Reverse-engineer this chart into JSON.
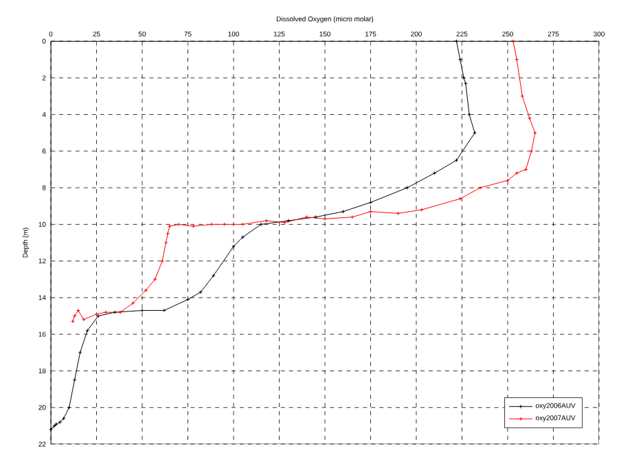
{
  "chart_data": {
    "type": "line",
    "title": "Dissolved Oxygen (micro molar)",
    "ylabel": "Depth (m)",
    "xlim": [
      0,
      300
    ],
    "xticks": [
      0,
      25,
      50,
      75,
      100,
      125,
      150,
      175,
      200,
      225,
      250,
      275,
      300
    ],
    "ylim": [
      22,
      0
    ],
    "yticks": [
      0,
      2,
      4,
      6,
      8,
      10,
      12,
      14,
      16,
      18,
      20,
      22
    ],
    "grid": true,
    "legend": "bottom right",
    "marker": "cross",
    "line_style": "solid",
    "series": [
      {
        "name": "oxy2006AUV",
        "color": "#000000",
        "x": [
          222,
          224,
          226,
          227,
          229,
          232,
          222,
          210,
          195,
          175,
          160,
          145,
          130,
          115,
          105,
          100,
          89,
          82,
          75,
          62,
          50,
          35,
          26,
          20,
          16,
          13,
          10,
          7,
          5,
          2,
          0,
          3
        ],
        "values": [
          0,
          1,
          2,
          2.3,
          4,
          5,
          6.5,
          7.2,
          8,
          8.8,
          9.3,
          9.6,
          9.8,
          10,
          10.7,
          11.2,
          12.8,
          13.7,
          14.1,
          14.7,
          14.7,
          14.8,
          15,
          15.8,
          17,
          18.5,
          20,
          20.6,
          20.8,
          21,
          21.2,
          20.9
        ]
      },
      {
        "name": "oxy2007AUV",
        "color": "#ff0000",
        "x": [
          253,
          255,
          258,
          262,
          265,
          263,
          260,
          255,
          250,
          235,
          224,
          203,
          190,
          175,
          165,
          150,
          140,
          128,
          118,
          105,
          95,
          88,
          78,
          70,
          65,
          64,
          63,
          61,
          57,
          52,
          45,
          38,
          30,
          25,
          18,
          15,
          13,
          12
        ],
        "values": [
          0,
          1,
          3,
          4.2,
          5,
          6,
          7,
          7.2,
          7.6,
          8,
          8.6,
          9.2,
          9.4,
          9.3,
          9.6,
          9.7,
          9.6,
          9.9,
          9.8,
          10,
          10,
          10,
          10.1,
          10,
          10.1,
          10.5,
          11,
          12,
          13,
          13.6,
          14.3,
          14.8,
          14.8,
          14.9,
          15.2,
          14.7,
          15,
          15.3
        ]
      }
    ]
  }
}
